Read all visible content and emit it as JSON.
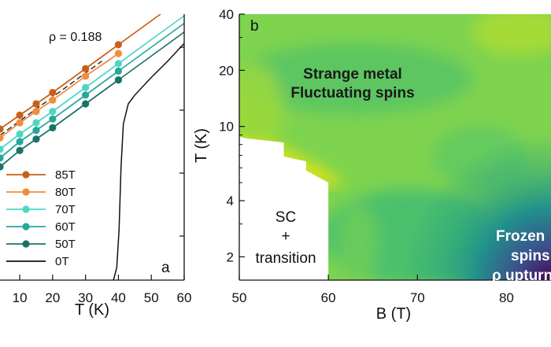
{
  "chart_data": [
    {
      "type": "line",
      "panel_label": "a",
      "annotation": "ρ = 0.188",
      "xlabel": "T (K)",
      "ylabel": "",
      "xlim": [
        4,
        60
      ],
      "x_ticks": [
        "10",
        "20",
        "30",
        "40",
        "50",
        "60"
      ],
      "x_tick_values": [
        10,
        20,
        30,
        40,
        50,
        60
      ],
      "legend_position": "lower-right",
      "series": [
        {
          "name": "85T",
          "color": "#c8601a",
          "marker": "circle",
          "x": [
            4,
            10,
            15,
            20,
            30,
            40
          ],
          "y": [
            0.6,
            0.655,
            0.7,
            0.745,
            0.84,
            0.935
          ]
        },
        {
          "name": "80T",
          "color": "#f08e3e",
          "marker": "circle",
          "x": [
            4,
            10,
            15,
            20,
            30,
            40
          ],
          "y": [
            0.565,
            0.625,
            0.67,
            0.715,
            0.81,
            0.9
          ]
        },
        {
          "name": "70T",
          "color": "#4fd6c4",
          "marker": "circle",
          "x": [
            4,
            10,
            15,
            20,
            30,
            40
          ],
          "y": [
            0.52,
            0.58,
            0.625,
            0.67,
            0.765,
            0.86
          ]
        },
        {
          "name": "60T",
          "color": "#26a899",
          "marker": "circle",
          "x": [
            4,
            10,
            15,
            20,
            30,
            40
          ],
          "y": [
            0.485,
            0.55,
            0.595,
            0.64,
            0.735,
            0.83
          ]
        },
        {
          "name": "50T",
          "color": "#1a7268",
          "marker": "circle",
          "x": [
            4,
            10,
            15,
            20,
            30,
            40
          ],
          "y": [
            0.45,
            0.515,
            0.56,
            0.605,
            0.7,
            0.795
          ]
        },
        {
          "name": "0T",
          "color": "#111111",
          "marker": "none",
          "x": [
            38.5,
            39.5,
            40.2,
            40.8,
            41.5,
            43,
            45,
            50,
            55,
            60
          ],
          "y": [
            0.0,
            0.05,
            0.2,
            0.45,
            0.62,
            0.7,
            0.735,
            0.805,
            0.87,
            0.94
          ]
        }
      ],
      "fit_lines": [
        {
          "color": "#c8601a",
          "x": [
            40,
            60
          ],
          "y": [
            0.935,
            1.125
          ]
        },
        {
          "color": "#4fd6c4",
          "x": [
            40,
            60
          ],
          "y": [
            0.86,
            1.05
          ]
        },
        {
          "color": "#26a899",
          "x": [
            40,
            60
          ],
          "y": [
            0.83,
            1.02
          ]
        },
        {
          "color": "#1a7268",
          "x": [
            40,
            60
          ],
          "y": [
            0.795,
            0.985
          ]
        }
      ],
      "dashed_fit": {
        "color": "#222222",
        "x": [
          4,
          35
        ],
        "y": [
          0.575,
          0.87
        ]
      }
    },
    {
      "type": "heatmap",
      "panel_label": "b",
      "xlabel": "B (T)",
      "ylabel": "T (K)",
      "xlim": [
        50,
        85
      ],
      "ylim": [
        1.5,
        40
      ],
      "y_scale": "log",
      "x_ticks": [
        "50",
        "60",
        "70",
        "80"
      ],
      "x_tick_values": [
        50,
        60,
        70,
        80
      ],
      "y_ticks": [
        "2",
        "4",
        "10",
        "20",
        "40"
      ],
      "y_tick_values": [
        2,
        4,
        10,
        20,
        40
      ],
      "colormap": "viridis",
      "sc_boundary": {
        "B": [
          50,
          51,
          52,
          53,
          55,
          55,
          57.5,
          57.5,
          60,
          60
        ],
        "T": [
          8.8,
          8.6,
          8.5,
          8.4,
          8.2,
          6.9,
          6.5,
          5.8,
          5.0,
          1.5
        ]
      },
      "regions": [
        {
          "lines": [
            "Strange metal",
            "Fluctuating spins"
          ],
          "style": "dark"
        },
        {
          "lines": [
            "SC",
            "+",
            "transition"
          ],
          "style": "plain"
        },
        {
          "lines": [
            "Frozen",
            "spins",
            "ρ upturn"
          ],
          "style": "light"
        }
      ]
    }
  ]
}
